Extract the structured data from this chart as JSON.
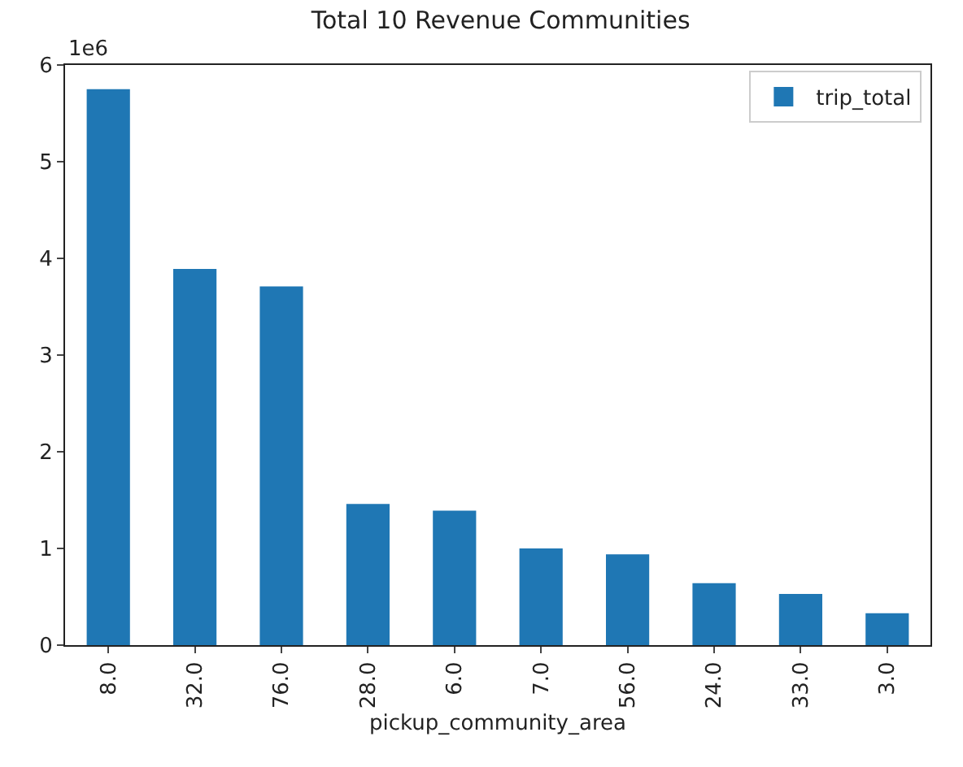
{
  "chart_data": {
    "type": "bar",
    "title": "Total 10 Revenue Communities",
    "xlabel": "pickup_community_area",
    "categories": [
      "8.0",
      "32.0",
      "76.0",
      "28.0",
      "6.0",
      "7.0",
      "56.0",
      "24.0",
      "33.0",
      "3.0"
    ],
    "series": [
      {
        "name": "trip_total",
        "color": "#1f77b4",
        "values": [
          5.75,
          3.89,
          3.71,
          1.46,
          1.39,
          1.0,
          0.94,
          0.64,
          0.53,
          0.33
        ]
      }
    ],
    "ylim": [
      0,
      6
    ],
    "yticks": [
      0,
      1,
      2,
      3,
      4,
      5,
      6
    ],
    "annotations": [
      "1e6"
    ],
    "legend": "top right"
  }
}
